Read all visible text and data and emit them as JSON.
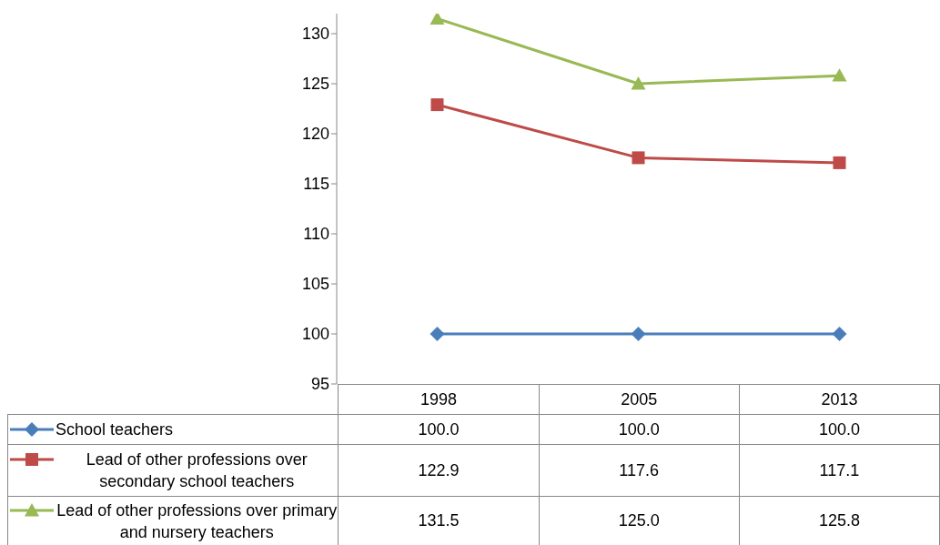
{
  "chart_data": {
    "type": "line",
    "categories": [
      "1998",
      "2005",
      "2013"
    ],
    "ylim": [
      95,
      132
    ],
    "yticks": [
      95,
      100,
      105,
      110,
      115,
      120,
      125,
      130
    ],
    "grid": false,
    "legend": "bottom",
    "data_labels": true,
    "series": [
      {
        "name": "School  teachers",
        "color": "#4a7ebb",
        "marker": "diamond",
        "values": [
          100.0,
          100.0,
          100.0
        ],
        "value_labels": [
          "100.0",
          "100.0",
          "100.0"
        ]
      },
      {
        "name": "Lead of other professions over secondary school teachers",
        "color": "#be4b48",
        "marker": "square",
        "values": [
          122.9,
          117.6,
          117.1
        ],
        "value_labels": [
          "122.9",
          "117.6",
          "117.1"
        ]
      },
      {
        "name": "Lead of other professions over primary and nursery teachers",
        "color": "#98b954",
        "marker": "triangle",
        "values": [
          131.5,
          125.0,
          125.8
        ],
        "value_labels": [
          "131.5",
          "125.0",
          "125.8"
        ]
      }
    ]
  }
}
